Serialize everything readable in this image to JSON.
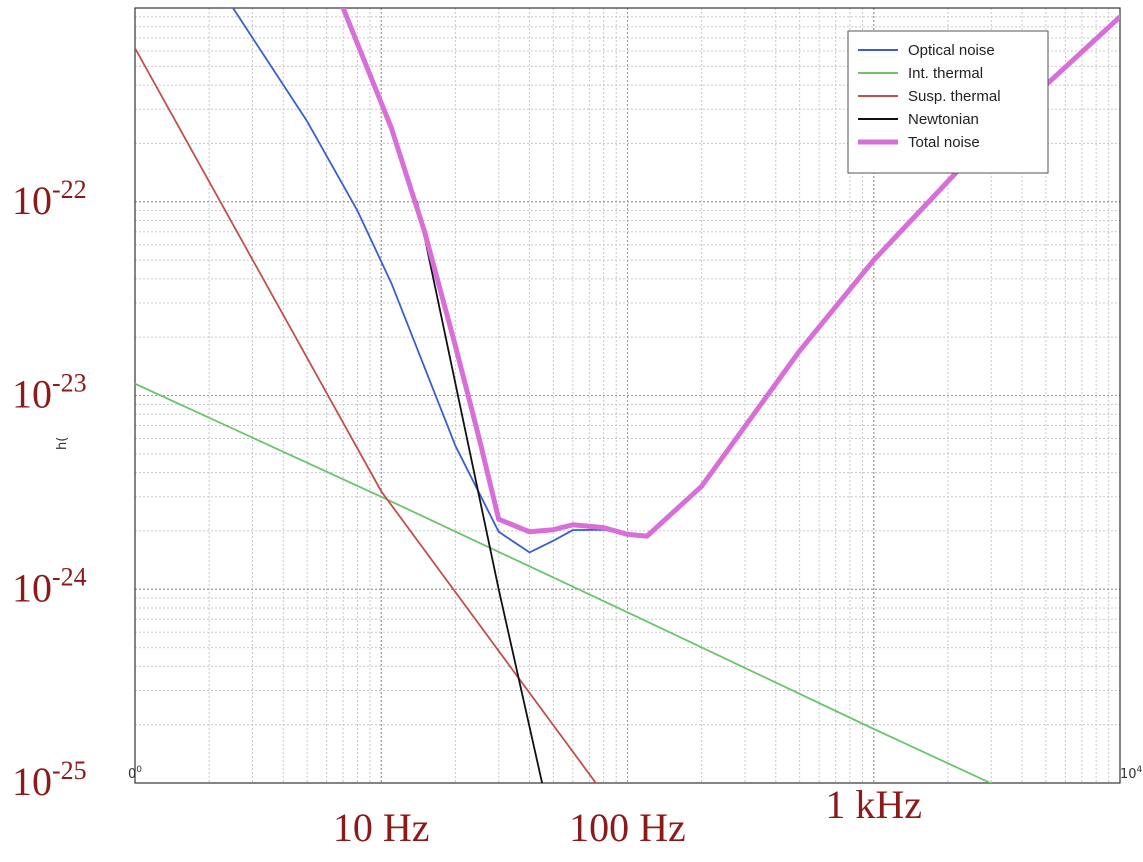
{
  "chart_data": {
    "type": "line",
    "x_scale": "log",
    "y_scale": "log",
    "xlim": [
      1,
      10000
    ],
    "ylim": [
      1e-25,
      1e-21
    ],
    "grid": true,
    "legend_position": "top-right",
    "ylabel": "h(",
    "tick_labels": {
      "x_small": [
        "0",
        "10"
      ],
      "x_small_exponent": [
        "0",
        "4"
      ],
      "x_big": [
        "10 Hz",
        "100 Hz",
        "1 kHz"
      ],
      "y_big_base": [
        "10",
        "10",
        "10",
        "10"
      ],
      "y_big_exponent": [
        "-22",
        "-23",
        "-24",
        "-25"
      ]
    },
    "series": [
      {
        "name": "Optical noise",
        "color": "#3a5fcd",
        "points": [
          [
            2.5,
            1e-21
          ],
          [
            5,
            2.6e-22
          ],
          [
            8,
            9e-23
          ],
          [
            11,
            3.8e-23
          ],
          [
            20,
            5.5e-24
          ],
          [
            30,
            1.98e-24
          ],
          [
            40,
            1.55e-24
          ],
          [
            50,
            1.78e-24
          ],
          [
            60,
            2.02e-24
          ],
          [
            80,
            2.03e-24
          ],
          [
            100,
            1.92e-24
          ],
          [
            120,
            1.88e-24
          ],
          [
            200,
            3.4e-24
          ],
          [
            500,
            1.7e-23
          ],
          [
            1000,
            5e-23
          ],
          [
            3000,
            2.2e-22
          ],
          [
            10000,
            9e-22
          ]
        ]
      },
      {
        "name": "Int. thermal",
        "color": "#6cc46c",
        "points": [
          [
            1,
            1.15e-23
          ],
          [
            10,
            3e-24
          ],
          [
            100,
            7.6e-25
          ],
          [
            1000,
            1.9e-25
          ],
          [
            10000,
            4.9e-26
          ]
        ]
      },
      {
        "name": "Susp. thermal",
        "color": "#c0504d",
        "points": [
          [
            1,
            6.2e-22
          ],
          [
            10,
            3.2e-24
          ],
          [
            100,
            6e-26
          ]
        ]
      },
      {
        "name": "Newtonian",
        "color": "#111111",
        "points": [
          [
            14,
            1e-22
          ],
          [
            30,
            1e-24
          ],
          [
            45,
            1e-25
          ]
        ]
      },
      {
        "name": "Total noise",
        "color": "#d86fd8",
        "points": [
          [
            7,
            1e-21
          ],
          [
            11,
            2.4e-22
          ],
          [
            15,
            7e-23
          ],
          [
            20,
            1.8e-23
          ],
          [
            25,
            6e-24
          ],
          [
            30,
            2.3e-24
          ],
          [
            40,
            1.98e-24
          ],
          [
            50,
            2.03e-24
          ],
          [
            60,
            2.15e-24
          ],
          [
            80,
            2.08e-24
          ],
          [
            100,
            1.92e-24
          ],
          [
            120,
            1.88e-24
          ],
          [
            200,
            3.4e-24
          ],
          [
            500,
            1.7e-23
          ],
          [
            1000,
            5e-23
          ],
          [
            3000,
            2.2e-22
          ],
          [
            10000,
            9e-22
          ]
        ]
      }
    ]
  }
}
